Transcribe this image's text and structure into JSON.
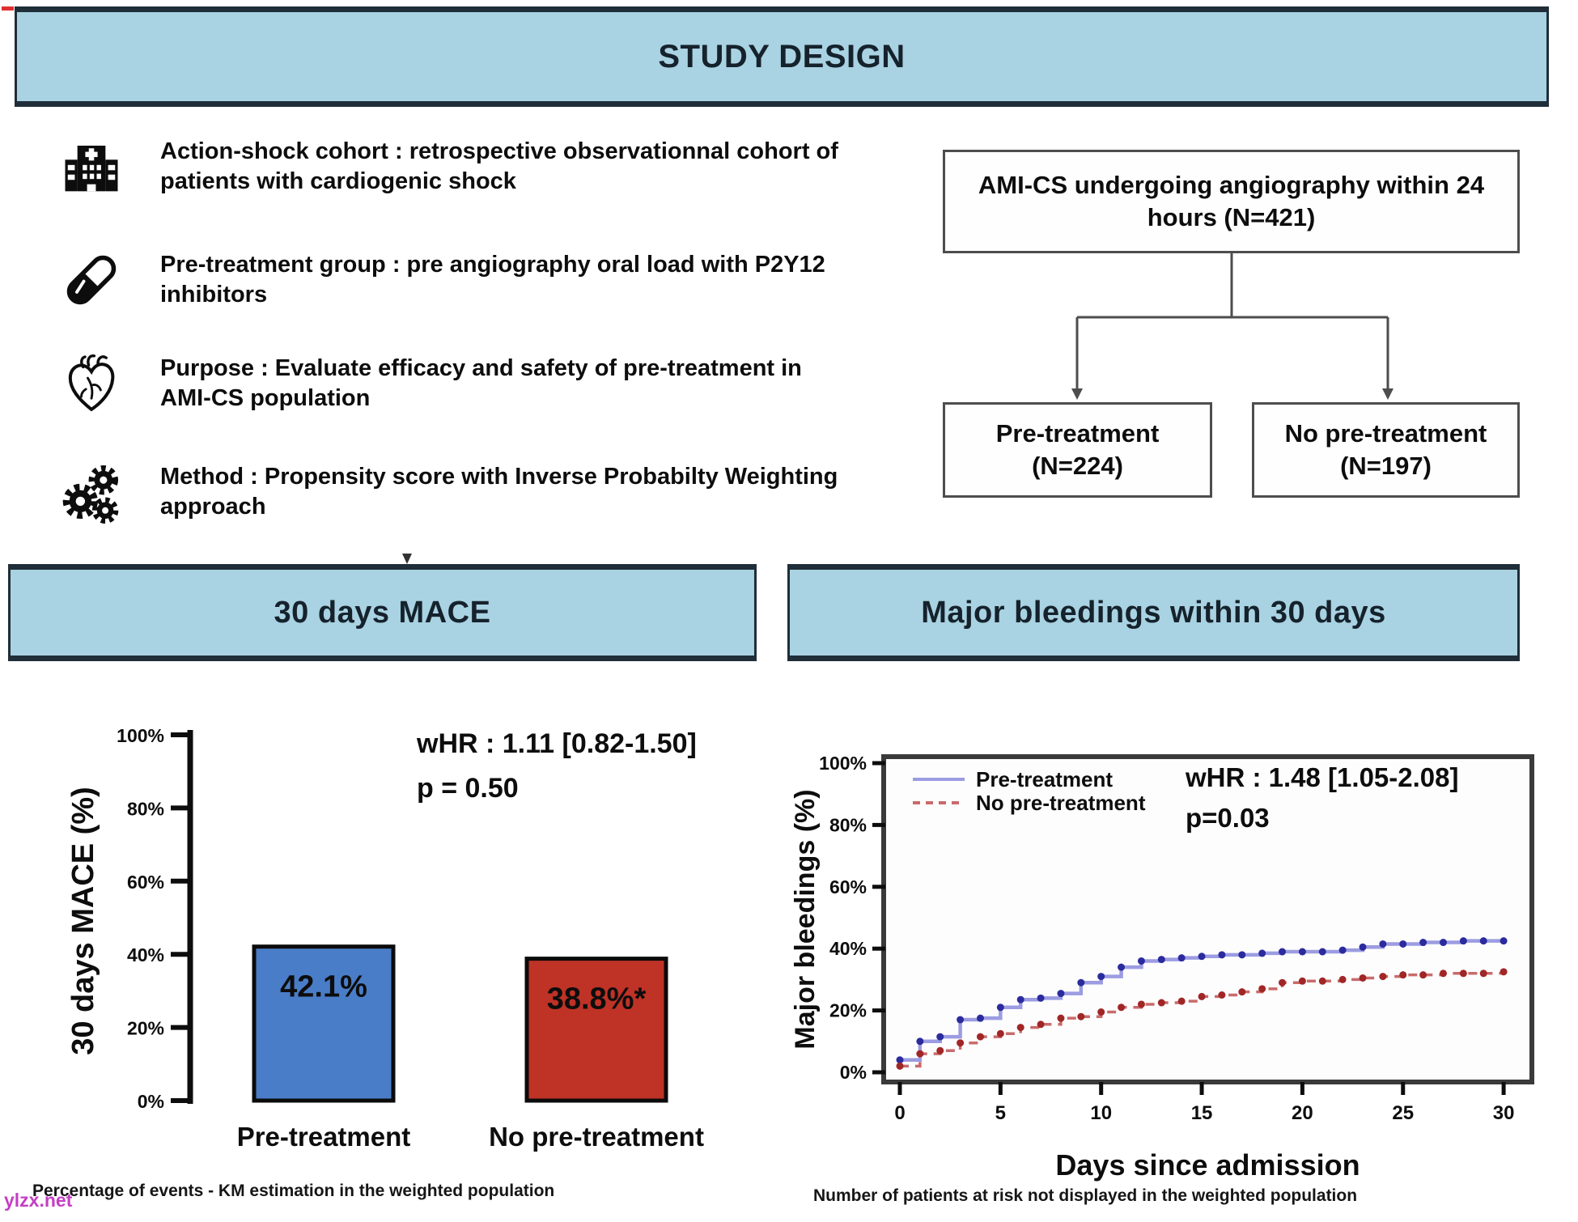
{
  "header": {
    "title": "STUDY DESIGN"
  },
  "study_points": [
    {
      "icon": "hospital-icon",
      "text": "Action-shock cohort : retrospective observationnal cohort of patients with cardiogenic shock"
    },
    {
      "icon": "pill-icon",
      "text": "Pre-treatment group : pre angiography oral load with P2Y12 inhibitors"
    },
    {
      "icon": "heart-icon",
      "text": "Purpose : Evaluate efficacy and safety of pre-treatment in AMI-CS population"
    },
    {
      "icon": "gears-icon",
      "text": "Method : Propensity score with Inverse Probabilty Weighting approach"
    }
  ],
  "flowchart": {
    "root": "AMI-CS undergoing angiography within 24 hours (N=421)",
    "branches": [
      {
        "label": "Pre-treatment",
        "n": "(N=224)"
      },
      {
        "label": "No pre-treatment",
        "n": "(N=197)"
      }
    ]
  },
  "section_titles": {
    "left": "30 days MACE",
    "right": "Major bleedings within 30 days"
  },
  "chart_data": [
    {
      "type": "bar",
      "title": "30 days MACE",
      "ylabel": "30 days MACE (%)",
      "categories": [
        "Pre-treatment",
        "No pre-treatment"
      ],
      "values": [
        42.1,
        38.8
      ],
      "bar_labels": [
        "42.1%",
        "38.8%*"
      ],
      "bar_colors": [
        "#4a7dc8",
        "#bf3226"
      ],
      "ylim": [
        0,
        100
      ],
      "ytick_labels": [
        "0%",
        "20%",
        "40%",
        "60%",
        "80%",
        "100%"
      ],
      "grid": false,
      "annotation": [
        "wHR : 1.11 [0.82-1.50]",
        "p = 0.50"
      ],
      "footnote": "Percentage of events - KM estimation in the weighted population"
    },
    {
      "type": "line",
      "step": true,
      "title": "Major bleedings within 30 days",
      "xlabel": "Days since admission",
      "ylabel": "Major bleedings (%)",
      "xlim": [
        0,
        30
      ],
      "ylim": [
        0,
        100
      ],
      "xticks": [
        0,
        5,
        10,
        15,
        20,
        25,
        30
      ],
      "ytick_labels": [
        "0%",
        "20%",
        "40%",
        "60%",
        "80%",
        "100%"
      ],
      "legend_position": "top-left",
      "grid": false,
      "annotation": [
        "wHR : 1.48 [1.05-2.08]",
        "p=0.03"
      ],
      "footnote": "Number of patients at risk not displayed in the weighted population",
      "series": [
        {
          "name": "Pre-treatment",
          "line_color": "#9c9ce2",
          "marker_color": "#2b2b9e",
          "dashed": false,
          "x": [
            0,
            1,
            2,
            3,
            4,
            5,
            6,
            7,
            8,
            9,
            10,
            11,
            12,
            13,
            14,
            15,
            16,
            17,
            18,
            19,
            20,
            21,
            22,
            23,
            24,
            25,
            26,
            27,
            28,
            29,
            30
          ],
          "y": [
            4,
            10,
            11.5,
            17,
            17.5,
            21,
            23.5,
            24,
            25.5,
            29,
            31,
            34,
            36,
            36.5,
            37,
            37.5,
            38,
            38,
            38.5,
            39,
            39,
            39,
            39.5,
            40.5,
            41.5,
            41.5,
            42,
            42,
            42.5,
            42.5,
            42.5
          ]
        },
        {
          "name": "No pre-treatment",
          "line_color": "#c96b6b",
          "marker_color": "#a12626",
          "dashed": true,
          "x": [
            0,
            1,
            2,
            3,
            4,
            5,
            6,
            7,
            8,
            9,
            10,
            11,
            12,
            13,
            14,
            15,
            16,
            17,
            18,
            19,
            20,
            21,
            22,
            23,
            24,
            25,
            26,
            27,
            28,
            29,
            30
          ],
          "y": [
            2,
            6,
            7,
            9.5,
            11.5,
            12.5,
            14.5,
            15.5,
            17.5,
            18,
            19.5,
            21,
            22,
            22.5,
            23,
            24.5,
            25,
            26,
            27,
            29,
            29.5,
            29.5,
            30,
            30.5,
            31,
            31.5,
            31.5,
            32,
            32,
            32,
            32.5
          ]
        }
      ]
    }
  ],
  "artifacts": {
    "watermark": "ylzx.net"
  },
  "theme": {
    "banner_fill": "#a9d2e2",
    "banner_border": "#1f2e38",
    "box_border": "#4d4d4d",
    "text": "#0d0d0d",
    "watermark_color": "#c43fc4"
  }
}
